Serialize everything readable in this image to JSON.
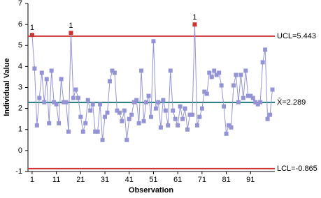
{
  "chart_data": {
    "type": "control",
    "x_label": "Observation",
    "y_label": "Individual Value",
    "x": [
      1,
      2,
      3,
      4,
      5,
      6,
      7,
      8,
      9,
      10,
      11,
      12,
      13,
      14,
      15,
      16,
      17,
      18,
      19,
      20,
      21,
      22,
      23,
      24,
      25,
      26,
      27,
      28,
      29,
      30,
      31,
      32,
      33,
      34,
      35,
      36,
      37,
      38,
      39,
      40,
      41,
      42,
      43,
      44,
      45,
      46,
      47,
      48,
      49,
      50,
      51,
      52,
      53,
      54,
      55,
      56,
      57,
      58,
      59,
      60,
      61,
      62,
      63,
      64,
      65,
      66,
      67,
      68,
      69,
      70,
      71,
      72,
      73,
      74,
      75,
      76,
      77,
      78,
      79,
      80,
      81,
      82,
      83,
      84,
      85,
      86,
      87,
      88,
      89,
      90,
      91,
      92,
      93,
      94,
      95,
      96,
      97,
      98,
      99,
      100
    ],
    "values": [
      5.5,
      3.9,
      1.2,
      2.5,
      3.7,
      2.3,
      3.4,
      1.3,
      3.8,
      2.3,
      2.2,
      1.3,
      3.4,
      2.3,
      2.3,
      0.9,
      5.6,
      2.5,
      2.9,
      2.5,
      1.6,
      0.9,
      1.3,
      2.4,
      1.9,
      2.2,
      0.9,
      0.9,
      2.2,
      0.5,
      1.6,
      1.8,
      3.3,
      3.8,
      3.7,
      1.9,
      1.8,
      1.4,
      1.9,
      0.5,
      1.5,
      1.7,
      2.3,
      2.4,
      1.3,
      3.8,
      1.4,
      2.3,
      2.6,
      1.6,
      5.2,
      2.0,
      2.3,
      1.1,
      2.4,
      1.9,
      1.2,
      3.8,
      1.9,
      1.5,
      1.2,
      2.1,
      1.5,
      2.0,
      1.0,
      1.7,
      1.7,
      6.0,
      1.2,
      1.6,
      2.0,
      2.8,
      2.7,
      3.7,
      3.5,
      3.8,
      3.6,
      3.7,
      3.1,
      2.1,
      0.8,
      1.2,
      1.1,
      3.1,
      3.6,
      2.3,
      3.6,
      2.5,
      3.8,
      2.6,
      2.6,
      2.5,
      2.3,
      2.2,
      2.3,
      4.2,
      4.8,
      1.5,
      1.7,
      2.9
    ],
    "color": "#9494d4",
    "highlight_color": "#cc3333",
    "annotations": [
      {
        "x": 1,
        "text": "1"
      },
      {
        "x": 17,
        "text": "1"
      },
      {
        "x": 68,
        "text": "1"
      }
    ],
    "control_limits": [
      {
        "label": "UCL=5.443",
        "value": 5.443,
        "color": "#cc3333"
      },
      {
        "label": "X̄=2.289",
        "value": 2.289,
        "color": "#1f7a7a"
      },
      {
        "label": "LCL=-0.865",
        "value": -0.865,
        "color": "#cc3333"
      }
    ],
    "xlim": [
      -0.7,
      101
    ],
    "ylim": [
      -1,
      7
    ],
    "xticks": [
      1,
      11,
      21,
      31,
      41,
      51,
      61,
      71,
      81,
      91
    ],
    "yticks": [
      -1,
      0,
      1,
      2,
      3,
      4,
      5,
      6,
      7
    ]
  }
}
